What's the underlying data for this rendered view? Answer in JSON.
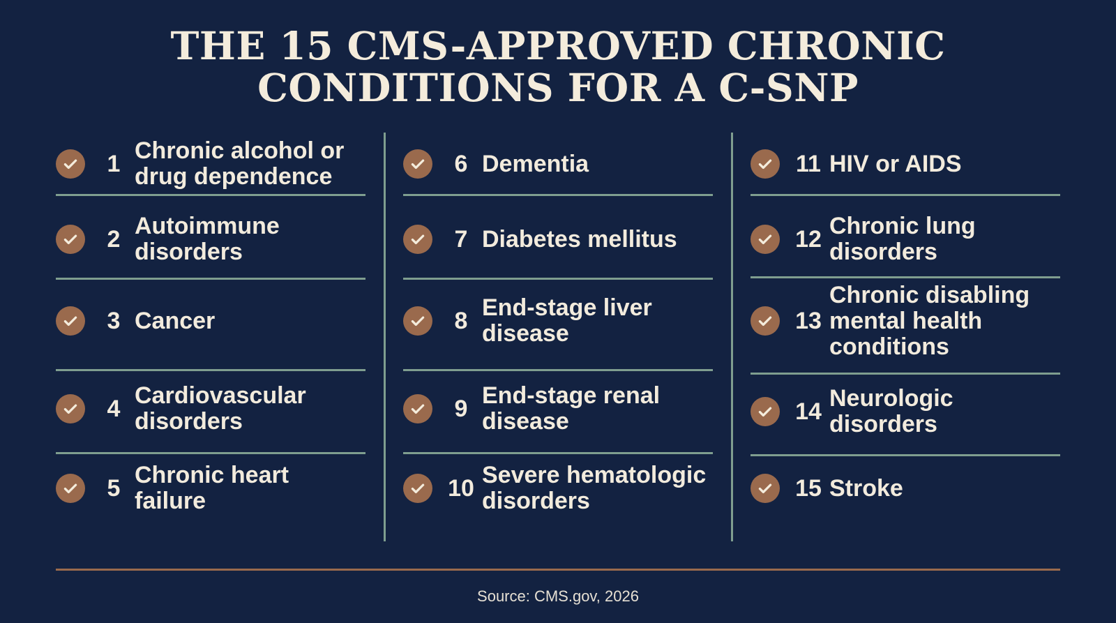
{
  "title": {
    "line1": "THE 15 CMS-APPROVED CHRONIC",
    "line2": "CONDITIONS FOR A C-SNP"
  },
  "conditions": [
    {
      "number": "1",
      "label": "Chronic alcohol or drug dependence"
    },
    {
      "number": "2",
      "label": "Autoimmune disorders"
    },
    {
      "number": "3",
      "label": "Cancer"
    },
    {
      "number": "4",
      "label": "Cardiovascular disorders"
    },
    {
      "number": "5",
      "label": "Chronic heart failure"
    },
    {
      "number": "6",
      "label": "Dementia"
    },
    {
      "number": "7",
      "label": "Diabetes mellitus"
    },
    {
      "number": "8",
      "label": "End-stage liver disease"
    },
    {
      "number": "9",
      "label": "End-stage renal disease"
    },
    {
      "number": "10",
      "label": "Severe hematologic disorders"
    },
    {
      "number": "11",
      "label": "HIV or AIDS"
    },
    {
      "number": "12",
      "label": "Chronic lung disorders"
    },
    {
      "number": "13",
      "label": "Chronic disabling mental health conditions"
    },
    {
      "number": "14",
      "label": "Neurologic disorders"
    },
    {
      "number": "15",
      "label": "Stroke"
    }
  ],
  "icons": {
    "item_marker": "check-icon"
  },
  "colors": {
    "background": "#132241",
    "accent": "#9a6a4d",
    "divider": "#7f9e8f",
    "text": "#f2ebdd"
  },
  "source": "Source: CMS.gov, 2026"
}
